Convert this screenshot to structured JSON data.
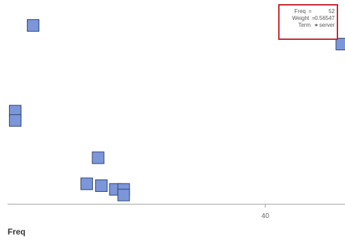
{
  "chart_data": {
    "type": "scatter",
    "xlabel": "Freq",
    "ylabel": "",
    "x_ticks": [
      40
    ],
    "xlim": [
      -0.4,
      52.5
    ],
    "ylim": [
      0,
      1
    ],
    "grid": false,
    "marker_color": "#7b96d9",
    "marker_edge_color": "#2e3f6b",
    "points": [
      {
        "x": 3.6,
        "y": 0.93
      },
      {
        "x": 0.8,
        "y": 0.47
      },
      {
        "x": 0.8,
        "y": 0.42
      },
      {
        "x": 13.8,
        "y": 0.22
      },
      {
        "x": 12.0,
        "y": 0.08
      },
      {
        "x": 14.3,
        "y": 0.07
      },
      {
        "x": 16.5,
        "y": 0.05
      },
      {
        "x": 17.8,
        "y": 0.05
      },
      {
        "x": 17.8,
        "y": 0.02
      },
      {
        "x": 52,
        "y": 0.83
      }
    ],
    "tooltip": {
      "rows": [
        {
          "key": "Freq",
          "value": "52"
        },
        {
          "key": "Weight",
          "value": "0.56547"
        },
        {
          "key": "Term",
          "value": "+ server"
        }
      ],
      "border_color": "#c8222a"
    }
  }
}
